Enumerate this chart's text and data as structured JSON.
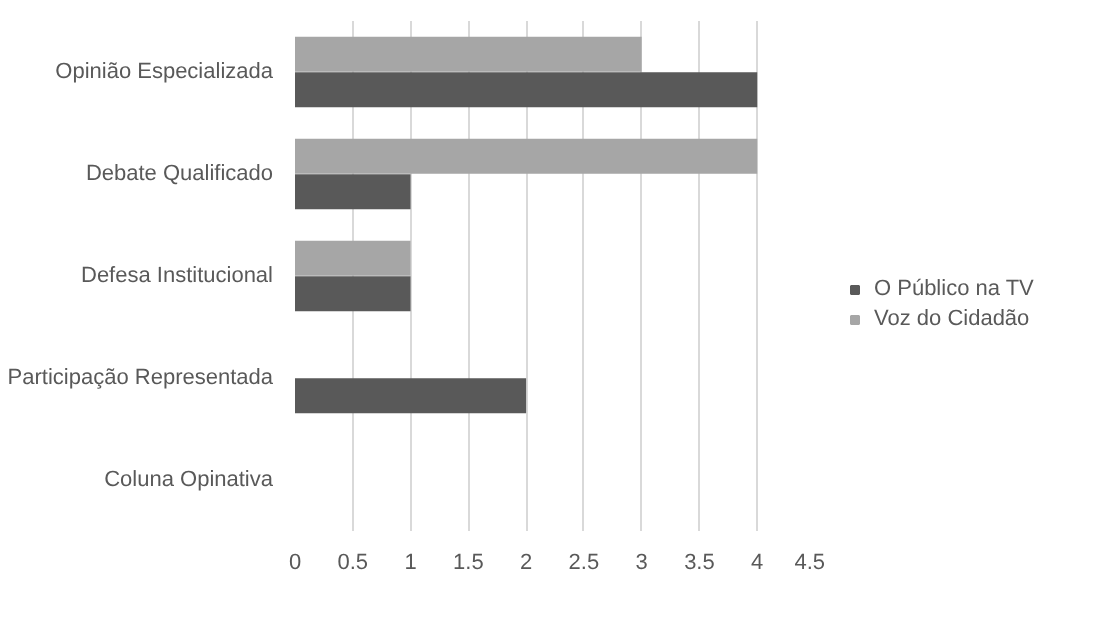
{
  "chart_data": {
    "type": "bar",
    "orientation": "horizontal",
    "categories": [
      "Opinião Especializada",
      "Debate Qualificado",
      "Defesa Institucional",
      "Participação Representada",
      "Coluna Opinativa"
    ],
    "series": [
      {
        "name": "O Público na TV",
        "color": "#595959",
        "values": [
          4,
          1,
          1,
          2,
          0
        ]
      },
      {
        "name": "Voz do Cidadão",
        "color": "#a6a6a6",
        "values": [
          3,
          4,
          1,
          0,
          0
        ]
      }
    ],
    "xlim": [
      0,
      4.5
    ],
    "xticks": [
      0,
      0.5,
      1,
      1.5,
      2,
      2.5,
      3,
      3.5,
      4,
      4.5
    ],
    "grid": "x",
    "legend": "right"
  }
}
